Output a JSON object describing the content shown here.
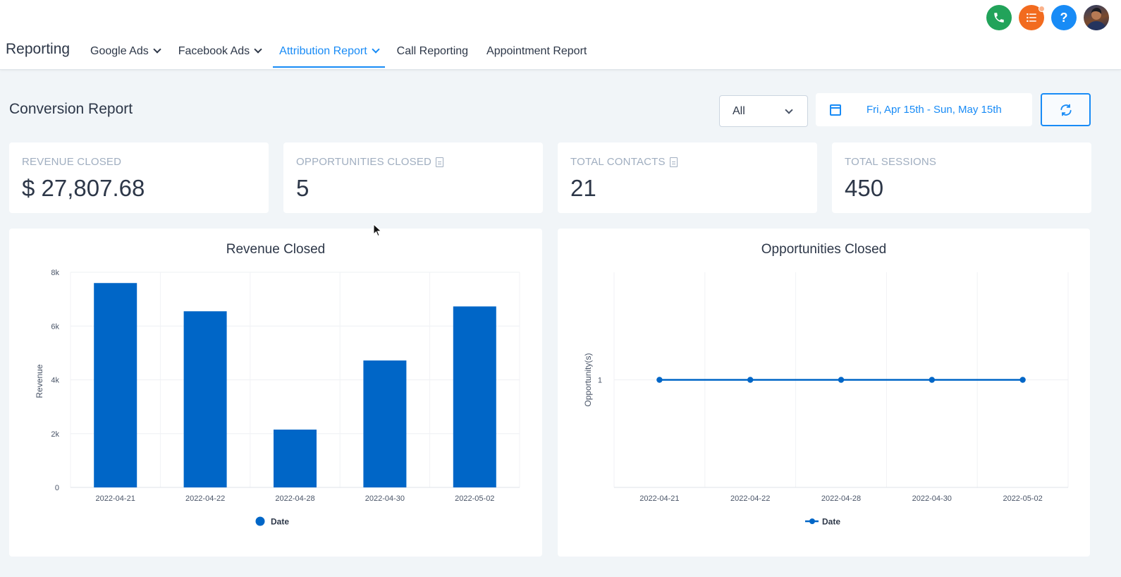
{
  "header": {
    "brand": "Reporting",
    "nav": [
      {
        "label": "Google Ads",
        "has_dropdown": true,
        "active": false
      },
      {
        "label": "Facebook Ads",
        "has_dropdown": true,
        "active": false
      },
      {
        "label": "Attribution Report",
        "has_dropdown": true,
        "active": true
      },
      {
        "label": "Call Reporting",
        "has_dropdown": false,
        "active": false
      },
      {
        "label": "Appointment Report",
        "has_dropdown": false,
        "active": false
      }
    ],
    "icons": [
      "phone-icon",
      "task-list-icon",
      "help-icon",
      "user-avatar"
    ]
  },
  "report": {
    "title": "Conversion Report",
    "filter_value": "All",
    "date_range": "Fri, Apr 15th - Sun, May 15th"
  },
  "kpis": [
    {
      "label": "REVENUE CLOSED",
      "value": "$ 27,807.68",
      "has_doc_icon": false
    },
    {
      "label": "OPPORTUNITIES CLOSED",
      "value": "5",
      "has_doc_icon": true
    },
    {
      "label": "TOTAL CONTACTS",
      "value": "21",
      "has_doc_icon": true
    },
    {
      "label": "TOTAL SESSIONS",
      "value": "450",
      "has_doc_icon": false
    }
  ],
  "colors": {
    "accent": "#188bf6",
    "bar": "#0066c7",
    "phone": "#22a35a",
    "tasks": "#f26b1f"
  },
  "chart_data": [
    {
      "type": "bar",
      "title": "Revenue Closed",
      "categories": [
        "2022-04-21",
        "2022-04-22",
        "2022-04-28",
        "2022-04-30",
        "2022-05-02"
      ],
      "series": [
        {
          "name": "Date",
          "values": [
            7600,
            6550,
            2150,
            4720,
            6730
          ]
        }
      ],
      "ylabel": "Revenue",
      "ylim": [
        0,
        8000
      ],
      "yticks": [
        "0",
        "2k",
        "4k",
        "6k",
        "8k"
      ],
      "grid": true,
      "legend": "bottom-center"
    },
    {
      "type": "line",
      "title": "Opportunities Closed",
      "categories": [
        "2022-04-21",
        "2022-04-22",
        "2022-04-28",
        "2022-04-30",
        "2022-05-02"
      ],
      "series": [
        {
          "name": "Date",
          "values": [
            1,
            1,
            1,
            1,
            1
          ]
        }
      ],
      "ylabel": "Opportunity(s)",
      "yticks": [
        "1"
      ],
      "grid": true,
      "legend": "bottom-center"
    }
  ]
}
